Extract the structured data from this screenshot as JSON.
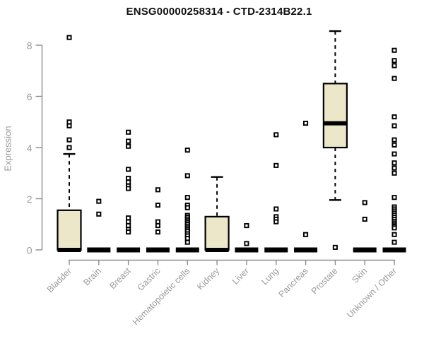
{
  "title": "ENSG00000258314 - CTD-2314B22.1",
  "colors": {
    "box_fill": "#EDE7C9",
    "box_stroke": "#000000",
    "median_color": "#000000",
    "outlier_color": "#000000",
    "axis_color": "#8c8c8c",
    "tick_label_color": "#9a9a9a",
    "title_color": "#111111"
  },
  "chart_data": {
    "type": "boxplot",
    "title": "ENSG00000258314 - CTD-2314B22.1",
    "xlabel": "",
    "ylabel": "Expression",
    "ylim": [
      0,
      8
    ],
    "yticks": [
      0,
      2,
      4,
      6,
      8
    ],
    "grid": false,
    "legend": "none",
    "categories": [
      "Bladder",
      "Brain",
      "Breast",
      "Gastric",
      "Hematopoietic cells",
      "Kidney",
      "Liver",
      "Lung",
      "Pancreas",
      "Prostate",
      "Skin",
      "Unknown / Other"
    ],
    "boxes": [
      {
        "label": "Bladder",
        "q1": 0,
        "median": 0,
        "q3": 1.55,
        "whisker_low": 0,
        "whisker_high": 3.75,
        "outliers": [
          8.3,
          5.0,
          4.85,
          4.3,
          4.0
        ]
      },
      {
        "label": "Brain",
        "q1": 0,
        "median": 0,
        "q3": 0,
        "whisker_low": 0,
        "whisker_high": 0,
        "outliers": [
          1.9,
          1.4
        ]
      },
      {
        "label": "Breast",
        "q1": 0,
        "median": 0,
        "q3": 0,
        "whisker_low": 0,
        "whisker_high": 0,
        "outliers": [
          4.6,
          4.25,
          4.05,
          3.15,
          2.8,
          2.65,
          2.5,
          2.4,
          1.25,
          1.1,
          0.95,
          0.8,
          0.7
        ]
      },
      {
        "label": "Gastric",
        "q1": 0,
        "median": 0,
        "q3": 0,
        "whisker_low": 0,
        "whisker_high": 0,
        "outliers": [
          2.35,
          1.75,
          1.1,
          0.95,
          0.7
        ]
      },
      {
        "label": "Hematopoietic cells",
        "q1": 0,
        "median": 0,
        "q3": 0,
        "whisker_low": 0,
        "whisker_high": 0,
        "outliers": [
          3.9,
          2.9,
          2.05,
          1.75,
          1.65,
          1.35,
          1.28,
          1.21,
          1.14,
          1.07,
          1.0,
          0.93,
          0.86,
          0.79,
          0.72,
          0.63,
          0.55,
          0.45,
          0.3
        ]
      },
      {
        "label": "Kidney",
        "q1": 0,
        "median": 0,
        "q3": 1.3,
        "whisker_low": 0,
        "whisker_high": 2.85,
        "outliers": []
      },
      {
        "label": "Liver",
        "q1": 0,
        "median": 0,
        "q3": 0,
        "whisker_low": 0,
        "whisker_high": 0,
        "outliers": [
          0.95,
          0.25
        ]
      },
      {
        "label": "Lung",
        "q1": 0,
        "median": 0,
        "q3": 0,
        "whisker_low": 0,
        "whisker_high": 0,
        "outliers": [
          4.5,
          3.3,
          1.6,
          1.3,
          1.2,
          1.1
        ]
      },
      {
        "label": "Pancreas",
        "q1": 0,
        "median": 0,
        "q3": 0,
        "whisker_low": 0,
        "whisker_high": 0,
        "outliers": [
          4.95,
          0.6
        ]
      },
      {
        "label": "Prostate",
        "q1": 4.0,
        "median": 4.95,
        "q3": 6.5,
        "whisker_low": 1.95,
        "whisker_high": 8.55,
        "outliers": [
          0.1
        ]
      },
      {
        "label": "Skin",
        "q1": 0,
        "median": 0,
        "q3": 0,
        "whisker_low": 0,
        "whisker_high": 0,
        "outliers": [
          1.85,
          1.2
        ]
      },
      {
        "label": "Unknown / Other",
        "q1": 0,
        "median": 0,
        "q3": 0,
        "whisker_low": 0,
        "whisker_high": 0,
        "outliers": [
          7.8,
          7.4,
          7.2,
          6.7,
          5.2,
          4.85,
          4.3,
          4.1,
          3.75,
          3.4,
          3.2,
          3.0,
          2.05,
          1.68,
          1.6,
          1.52,
          1.44,
          1.36,
          1.28,
          1.2,
          1.12,
          1.05,
          0.98,
          0.92,
          0.86,
          0.6,
          0.3
        ]
      }
    ]
  }
}
